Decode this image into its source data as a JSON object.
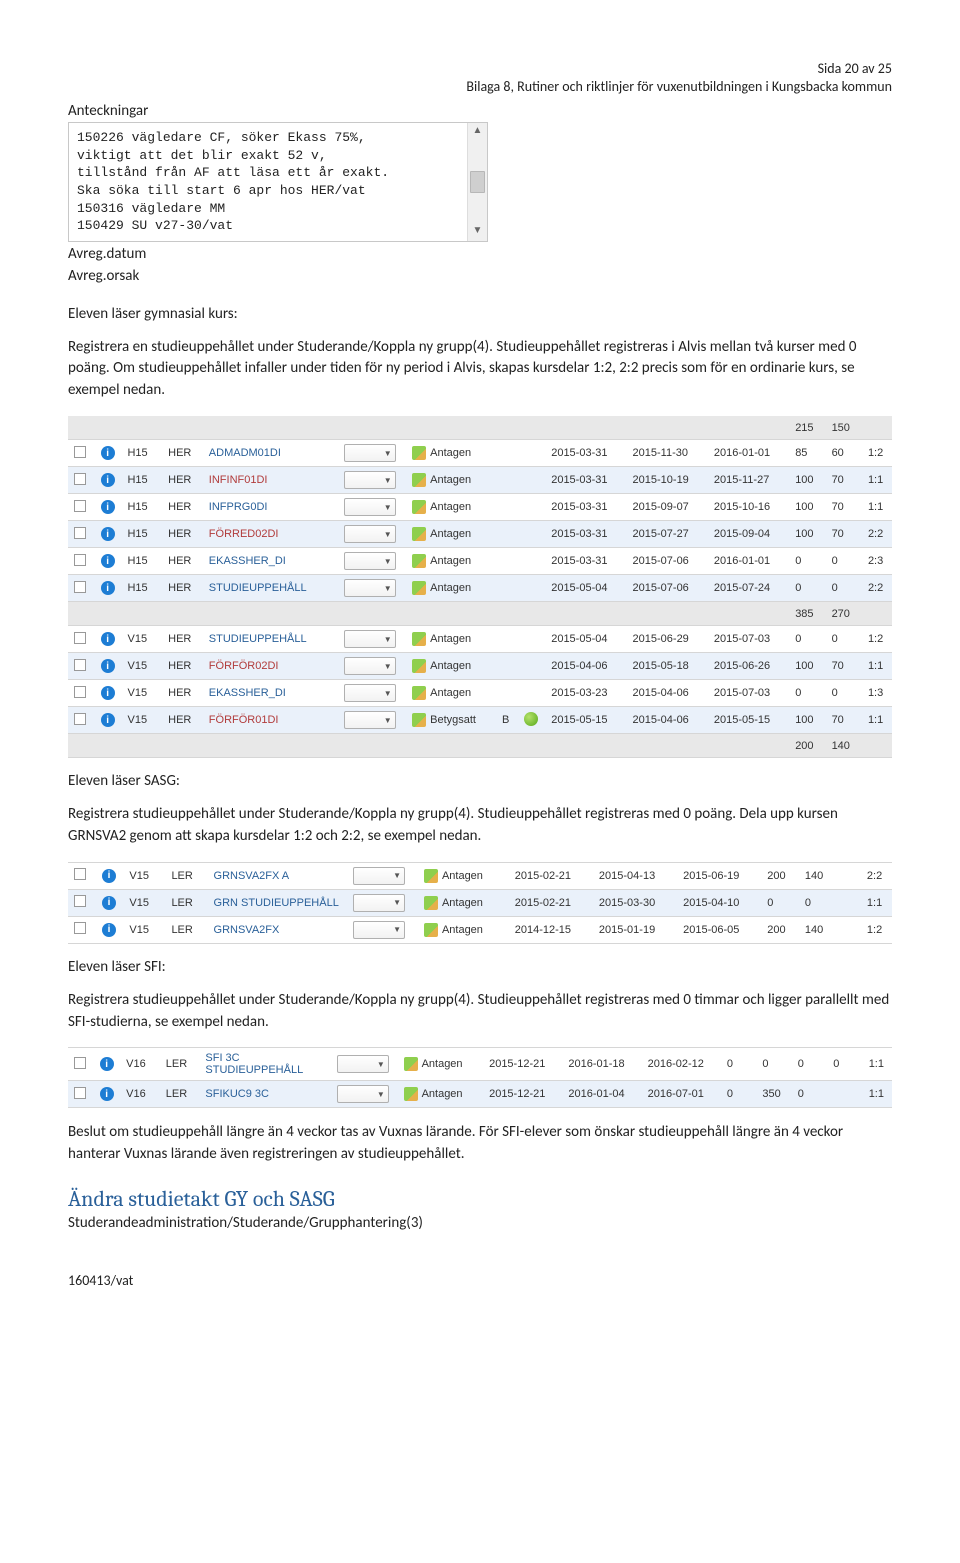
{
  "header": {
    "page_line": "Sida 20 av 25",
    "doc_line": "Bilaga 8, Rutiner och riktlinjer för vuxenutbildningen i Kungsbacka kommun"
  },
  "notes": {
    "label": "Anteckningar",
    "text": "150226 vägledare CF, söker Ekass 75%,\nviktigt att det blir exakt 52 v,\ntillstånd från AF att läsa ett år exakt.\nSka söka till start 6 apr hos HER/vat\n150316 vägledare MM\n150429 SU v27-30/vat",
    "avreg_datum": "Avreg.datum",
    "avreg_orsak": "Avreg.orsak"
  },
  "p1_heading": "Eleven läser gymnasial kurs:",
  "p1_body": "Registrera en studieuppehållet under Studerande/Koppla ny grupp(4). Studieuppehållet registreras i Alvis mellan två kurser med 0 poäng. Om studieuppehållet infaller under tiden för ny period i Alvis, skapas kursdelar 1:2, 2:2 precis som för en ordinarie kurs, se exempel nedan.",
  "table1": {
    "pre_sum": [
      "215",
      "150"
    ],
    "rows": [
      {
        "alt": false,
        "term": "H15",
        "enhet": "HER",
        "code": "ADMADM01DI",
        "codeClass": "link-code",
        "status": "Antagen",
        "b": "",
        "leaf": false,
        "d1": "2015-03-31",
        "d2": "2015-11-30",
        "d3": "2016-01-01",
        "n1": "85",
        "n2": "60",
        "r": "1:2"
      },
      {
        "alt": true,
        "term": "H15",
        "enhet": "HER",
        "code": "INFINF01DI",
        "codeClass": "red-code",
        "status": "Antagen",
        "b": "",
        "leaf": false,
        "d1": "2015-03-31",
        "d2": "2015-10-19",
        "d3": "2015-11-27",
        "n1": "100",
        "n2": "70",
        "r": "1:1"
      },
      {
        "alt": false,
        "term": "H15",
        "enhet": "HER",
        "code": "INFPRG0DI",
        "codeClass": "link-code",
        "status": "Antagen",
        "b": "",
        "leaf": false,
        "d1": "2015-03-31",
        "d2": "2015-09-07",
        "d3": "2015-10-16",
        "n1": "100",
        "n2": "70",
        "r": "1:1"
      },
      {
        "alt": true,
        "term": "H15",
        "enhet": "HER",
        "code": "FÖRRED02DI",
        "codeClass": "red-code",
        "status": "Antagen",
        "b": "",
        "leaf": false,
        "d1": "2015-03-31",
        "d2": "2015-07-27",
        "d3": "2015-09-04",
        "n1": "100",
        "n2": "70",
        "r": "2:2"
      },
      {
        "alt": false,
        "term": "H15",
        "enhet": "HER",
        "code": "EKASSHER_DI",
        "codeClass": "link-code",
        "status": "Antagen",
        "b": "",
        "leaf": false,
        "d1": "2015-03-31",
        "d2": "2015-07-06",
        "d3": "2016-01-01",
        "n1": "0",
        "n2": "0",
        "r": "2:3"
      },
      {
        "alt": true,
        "term": "H15",
        "enhet": "HER",
        "code": "STUDIEUPPEHÅLL",
        "codeClass": "link-code",
        "status": "Antagen",
        "b": "",
        "leaf": false,
        "d1": "2015-05-04",
        "d2": "2015-07-06",
        "d3": "2015-07-24",
        "n1": "0",
        "n2": "0",
        "r": "2:2"
      }
    ],
    "mid_sum": [
      "385",
      "270"
    ],
    "rows2": [
      {
        "alt": false,
        "term": "V15",
        "enhet": "HER",
        "code": "STUDIEUPPEHÅLL",
        "codeClass": "link-code",
        "status": "Antagen",
        "b": "",
        "leaf": false,
        "d1": "2015-05-04",
        "d2": "2015-06-29",
        "d3": "2015-07-03",
        "n1": "0",
        "n2": "0",
        "r": "1:2"
      },
      {
        "alt": true,
        "term": "V15",
        "enhet": "HER",
        "code": "FÖRFÖR02DI",
        "codeClass": "red-code",
        "status": "Antagen",
        "b": "",
        "leaf": false,
        "d1": "2015-04-06",
        "d2": "2015-05-18",
        "d3": "2015-06-26",
        "n1": "100",
        "n2": "70",
        "r": "1:1"
      },
      {
        "alt": false,
        "term": "V15",
        "enhet": "HER",
        "code": "EKASSHER_DI",
        "codeClass": "link-code",
        "status": "Antagen",
        "b": "",
        "leaf": false,
        "d1": "2015-03-23",
        "d2": "2015-04-06",
        "d3": "2015-07-03",
        "n1": "0",
        "n2": "0",
        "r": "1:3"
      },
      {
        "alt": true,
        "term": "V15",
        "enhet": "HER",
        "code": "FÖRFÖR01DI",
        "codeClass": "red-code",
        "status": "Betygsatt",
        "b": "B",
        "leaf": true,
        "d1": "2015-05-15",
        "d2": "2015-04-06",
        "d3": "2015-05-15",
        "n1": "100",
        "n2": "70",
        "r": "1:1"
      }
    ],
    "end_sum": [
      "200",
      "140"
    ]
  },
  "p2_heading": "Eleven läser SASG:",
  "p2_body": "Registrera studieuppehållet under Studerande/Koppla ny grupp(4). Studieuppehållet registreras med 0 poäng. Dela upp kursen GRNSVA2 genom att skapa kursdelar 1:2 och 2:2, se exempel nedan.",
  "table2": {
    "rows": [
      {
        "alt": false,
        "term": "V15",
        "enhet": "LER",
        "code": "GRNSVA2FX A",
        "codeClass": "link-code",
        "status": "Antagen",
        "d1": "2015-02-21",
        "d2": "2015-04-13",
        "d3": "2015-06-19",
        "n1": "200",
        "n2": "140",
        "r": "2:2"
      },
      {
        "alt": true,
        "term": "V15",
        "enhet": "LER",
        "code": "GRN STUDIEUPPEHÅLL",
        "codeClass": "link-code",
        "status": "Antagen",
        "d1": "2015-02-21",
        "d2": "2015-03-30",
        "d3": "2015-04-10",
        "n1": "0",
        "n2": "0",
        "r": "1:1"
      },
      {
        "alt": false,
        "term": "V15",
        "enhet": "LER",
        "code": "GRNSVA2FX",
        "codeClass": "link-code",
        "status": "Antagen",
        "d1": "2014-12-15",
        "d2": "2015-01-19",
        "d3": "2015-06-05",
        "n1": "200",
        "n2": "140",
        "r": "1:2"
      }
    ]
  },
  "p3_heading": "Eleven läser SFI:",
  "p3_body": "Registrera studieuppehållet under Studerande/Koppla ny grupp(4). Studieuppehållet registreras med 0 timmar och ligger parallellt med SFI-studierna, se exempel nedan.",
  "table3": {
    "rows": [
      {
        "alt": false,
        "term": "V16",
        "enhet": "LER",
        "code": "SFI 3C STUDIEUPPEHÅLL",
        "codeClass": "link-code",
        "status": "Antagen",
        "d1": "2015-12-21",
        "d2": "2016-01-18",
        "d3": "2016-02-12",
        "n1": "0",
        "n2": "0",
        "n3": "0",
        "n4": "0",
        "r": "1:1"
      },
      {
        "alt": true,
        "term": "V16",
        "enhet": "LER",
        "code": "SFIKUC9 3C",
        "codeClass": "link-code",
        "status": "Antagen",
        "d1": "2015-12-21",
        "d2": "2016-01-04",
        "d3": "2016-07-01",
        "n1": "0",
        "n2": "350",
        "n3": "0",
        "n4": "",
        "r": "1:1"
      }
    ]
  },
  "p4_body": "Beslut om studieuppehåll längre än 4 veckor tas av Vuxnas lärande. För SFI-elever som önskar studieuppehåll längre än 4 veckor hanterar Vuxnas lärande även registreringen av studieuppehållet.",
  "h2": "Ändra studietakt GY och SASG",
  "subpath": "Studerandeadministration/Studerande/Grupphantering(3)",
  "footer": "160413/vat",
  "colors": {
    "link": "#2a6099",
    "alt_row": "#eaf1fa",
    "sum_row": "#e8e8e8",
    "heading": "#2a6099"
  }
}
